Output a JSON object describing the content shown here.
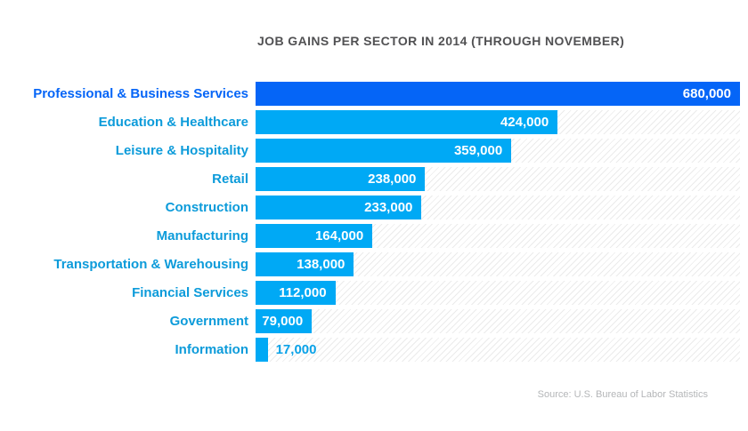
{
  "colors": {
    "highlight_bar": "#0565f7",
    "bar": "#00a9f5",
    "highlight_label": "#0565f7",
    "label": "#0c9bda",
    "value_text": "#ffffff",
    "outside_value_text": "#0aa2e8",
    "title_text": "#515153",
    "source_text": "#b4b6b8",
    "hatch_line": "#ebebeb",
    "background": "#ffffff"
  },
  "chart_data": {
    "type": "bar",
    "orientation": "horizontal",
    "title": "JOB GAINS PER SECTOR IN 2014 (THROUGH NOVEMBER)",
    "source": "Source: U.S. Bureau of Labor Statistics",
    "categories": [
      "Professional & Business Services",
      "Education & Healthcare",
      "Leisure & Hospitality",
      "Retail",
      "Construction",
      "Manufacturing",
      "Transportation & Warehousing",
      "Financial Services",
      "Government",
      "Information"
    ],
    "values": [
      680000,
      424000,
      359000,
      238000,
      233000,
      164000,
      138000,
      112000,
      79000,
      17000
    ],
    "value_labels": [
      "680,000",
      "424,000",
      "359,000",
      "238,000",
      "233,000",
      "164,000",
      "138,000",
      "112,000",
      "79,000",
      "17,000"
    ],
    "value_label_placement": [
      "inside",
      "inside",
      "inside",
      "inside",
      "inside",
      "inside",
      "inside",
      "inside",
      "inside",
      "outside"
    ],
    "xlim": [
      0,
      680000
    ],
    "highlight_index": 0,
    "grid": false,
    "legend": false,
    "track_hatched": true
  }
}
